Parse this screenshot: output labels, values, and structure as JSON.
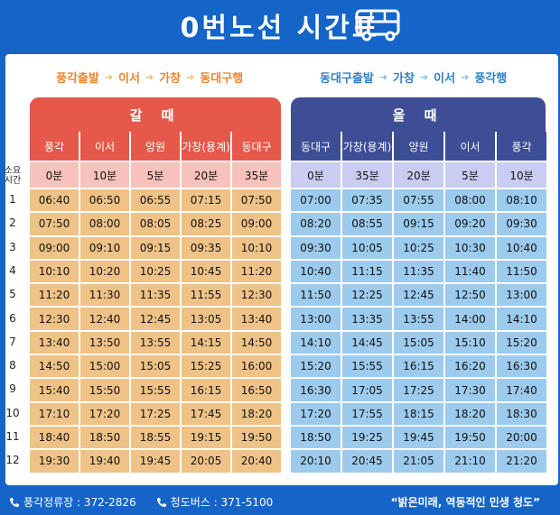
{
  "header": {
    "title": "0번노선 시간표"
  },
  "routes": {
    "out": [
      "풍각출발",
      "이서",
      "가창",
      "동대구행"
    ],
    "back": [
      "동대구출발",
      "가창",
      "이서",
      "풍각행"
    ]
  },
  "banners": {
    "out": "갈 때",
    "back": "올 때"
  },
  "side": {
    "duration_label": "소요\n시간",
    "rows": [
      "1",
      "2",
      "3",
      "4",
      "5",
      "6",
      "7",
      "8",
      "9",
      "10",
      "11",
      "12"
    ]
  },
  "out": {
    "stops": [
      "풍각",
      "이서",
      "양원",
      "가창(용계)",
      "동대구"
    ],
    "durations": [
      "0분",
      "10분",
      "5분",
      "20분",
      "35분"
    ],
    "times": [
      [
        "06:40",
        "06:50",
        "06:55",
        "07:15",
        "07:50"
      ],
      [
        "07:50",
        "08:00",
        "08:05",
        "08:25",
        "09:00"
      ],
      [
        "09:00",
        "09:10",
        "09:15",
        "09:35",
        "10:10"
      ],
      [
        "10:10",
        "10:20",
        "10:25",
        "10:45",
        "11:20"
      ],
      [
        "11:20",
        "11:30",
        "11:35",
        "11:55",
        "12:30"
      ],
      [
        "12:30",
        "12:40",
        "12:45",
        "13:05",
        "13:40"
      ],
      [
        "13:40",
        "13:50",
        "13:55",
        "14:15",
        "14:50"
      ],
      [
        "14:50",
        "15:00",
        "15:05",
        "15:25",
        "16:00"
      ],
      [
        "15:40",
        "15:50",
        "15:55",
        "16:15",
        "16:50"
      ],
      [
        "17:10",
        "17:20",
        "17:25",
        "17:45",
        "18:20"
      ],
      [
        "18:40",
        "18:50",
        "18:55",
        "19:15",
        "19:50"
      ],
      [
        "19:30",
        "19:40",
        "19:45",
        "20:05",
        "20:40"
      ]
    ]
  },
  "back": {
    "stops": [
      "동대구",
      "가창(용계)",
      "양원",
      "이서",
      "풍각"
    ],
    "durations": [
      "0분",
      "35분",
      "20분",
      "5분",
      "10분"
    ],
    "times": [
      [
        "07:00",
        "07:35",
        "07:55",
        "08:00",
        "08:10"
      ],
      [
        "08:20",
        "08:55",
        "09:15",
        "09:20",
        "09:30"
      ],
      [
        "09:30",
        "10:05",
        "10:25",
        "10:30",
        "10:40"
      ],
      [
        "10:40",
        "11:15",
        "11:35",
        "11:40",
        "11:50"
      ],
      [
        "11:50",
        "12:25",
        "12:45",
        "12:50",
        "13:00"
      ],
      [
        "13:00",
        "13:35",
        "13:55",
        "14:00",
        "14:10"
      ],
      [
        "14:10",
        "14:45",
        "15:05",
        "15:10",
        "15:20"
      ],
      [
        "15:20",
        "15:55",
        "16:15",
        "16:20",
        "16:30"
      ],
      [
        "16:30",
        "17:05",
        "17:25",
        "17:30",
        "17:40"
      ],
      [
        "17:20",
        "17:55",
        "18:15",
        "18:20",
        "18:30"
      ],
      [
        "18:50",
        "19:25",
        "19:45",
        "19:50",
        "20:00"
      ],
      [
        "20:10",
        "20:45",
        "21:05",
        "21:10",
        "21:20"
      ]
    ]
  },
  "footer": {
    "phone1": "풍각정류장 : 372-2826",
    "phone2": "청도버스 : 371-5100",
    "slogan": "“밝은미래, 역동적인 민생 청도”"
  },
  "icons": {
    "header": "bus-icon",
    "footer": "phone-icon"
  },
  "colors": {
    "background": "#1565c8",
    "out_accent": "#e5584a",
    "back_accent": "#3d4d96",
    "out_cell": "#efc287",
    "back_cell": "#9ccbee",
    "out_route_text": "#f0842a",
    "back_route_text": "#2f80c8"
  }
}
